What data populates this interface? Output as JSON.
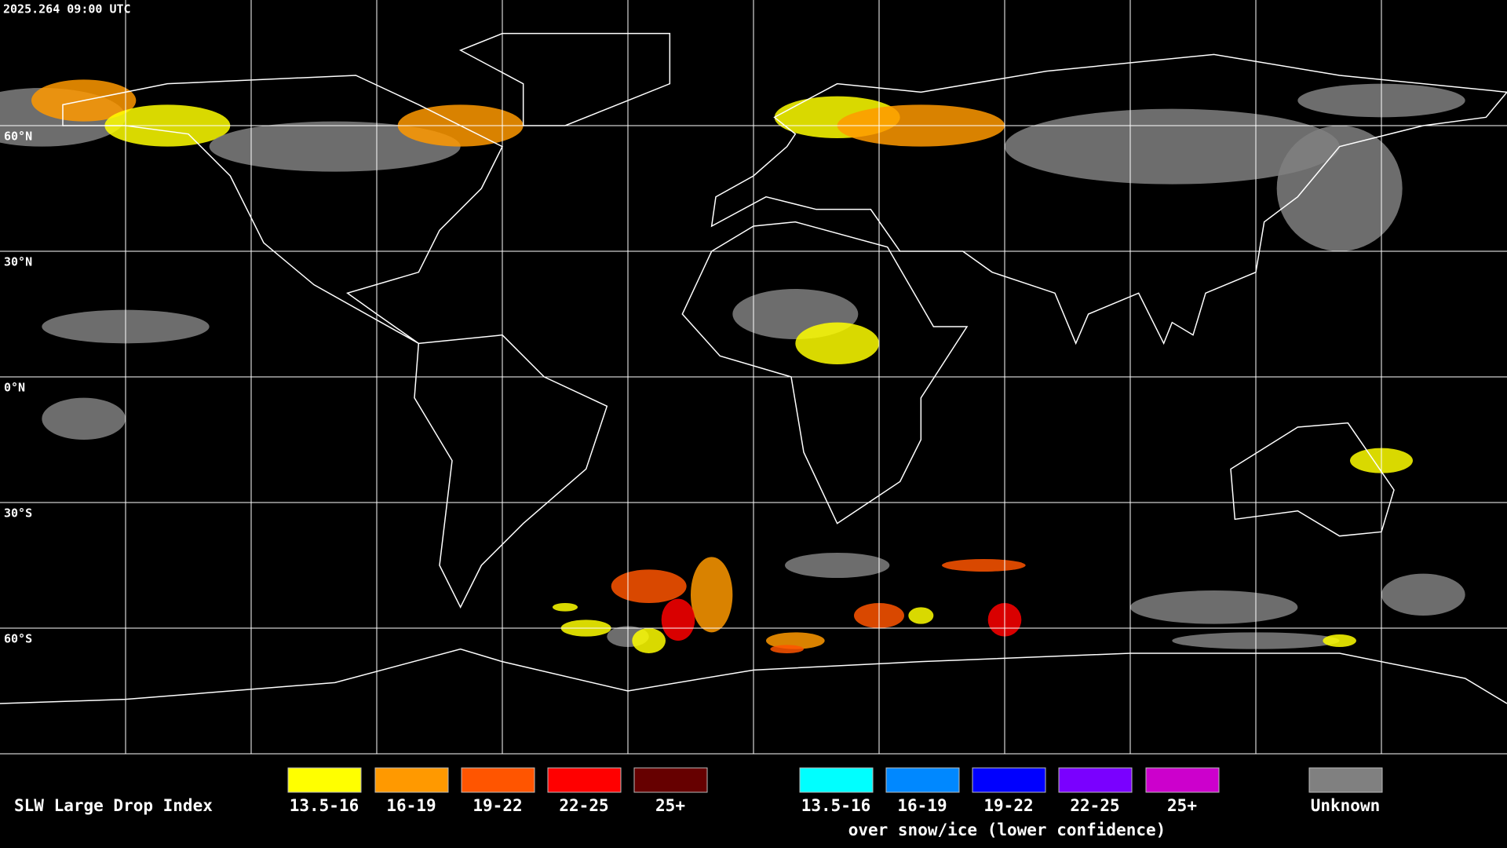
{
  "header": {
    "timestamp": "2025.264 09:00 UTC"
  },
  "map": {
    "lat_labels": [
      "60°N",
      "30°N",
      "0°N",
      "30°S",
      "60°S"
    ]
  },
  "legend": {
    "title": "SLW Large Drop Index",
    "groups": [
      {
        "items": [
          {
            "label": "13.5-16",
            "color": "#ffff00"
          },
          {
            "label": "16-19",
            "color": "#ff9900"
          },
          {
            "label": "19-22",
            "color": "#ff5500"
          },
          {
            "label": "22-25",
            "color": "#ff0000"
          },
          {
            "label": "25+",
            "color": "#660000"
          }
        ]
      },
      {
        "items": [
          {
            "label": "13.5-16",
            "color": "#00ffff"
          },
          {
            "label": "16-19",
            "color": "#0088ff"
          },
          {
            "label": "19-22",
            "color": "#0000ff"
          },
          {
            "label": "22-25",
            "color": "#7a00ff"
          },
          {
            "label": "25+",
            "color": "#cc00cc"
          }
        ],
        "caption": "over snow/ice (lower confidence)"
      },
      {
        "items": [
          {
            "label": "Unknown",
            "color": "#808080"
          }
        ]
      }
    ]
  }
}
